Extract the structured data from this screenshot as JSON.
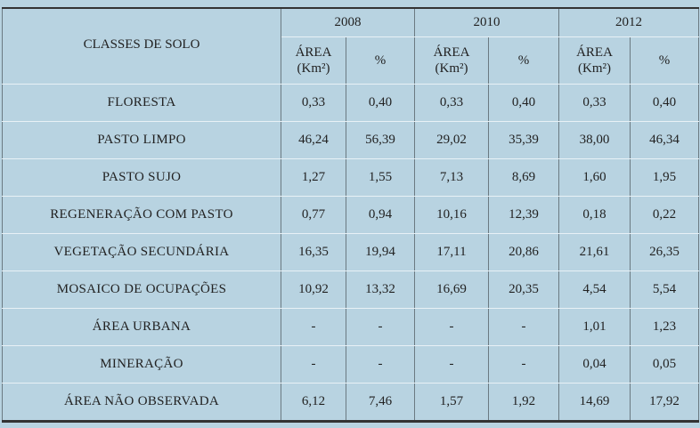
{
  "table": {
    "header": {
      "class_label": "CLASSES DE SOLO",
      "years": [
        "2008",
        "2010",
        "2012"
      ],
      "area_label": "ÁREA (Km²)",
      "percent_label": "%"
    },
    "rows": [
      [
        "FLORESTA",
        "0,33",
        "0,40",
        "0,33",
        "0,40",
        "0,33",
        "0,40"
      ],
      [
        "PASTO LIMPO",
        "46,24",
        "56,39",
        "29,02",
        "35,39",
        "38,00",
        "46,34"
      ],
      [
        "PASTO SUJO",
        "1,27",
        "1,55",
        "7,13",
        "8,69",
        "1,60",
        "1,95"
      ],
      [
        "REGENERAÇÃO COM PASTO",
        "0,77",
        "0,94",
        "10,16",
        "12,39",
        "0,18",
        "0,22"
      ],
      [
        "VEGETAÇÃO SECUNDÁRIA",
        "16,35",
        "19,94",
        "17,11",
        "20,86",
        "21,61",
        "26,35"
      ],
      [
        "MOSAICO DE OCUPAÇÕES",
        "10,92",
        "13,32",
        "16,69",
        "20,35",
        "4,54",
        "5,54"
      ],
      [
        "ÁREA URBANA",
        "-",
        "-",
        "-",
        "-",
        "1,01",
        "1,23"
      ],
      [
        "MINERAÇÃO",
        "-",
        "-",
        "-",
        "-",
        "0,04",
        "0,05"
      ],
      [
        "ÁREA NÃO OBSERVADA",
        "6,12",
        "7,46",
        "1,57",
        "1,92",
        "14,69",
        "17,92"
      ]
    ]
  }
}
